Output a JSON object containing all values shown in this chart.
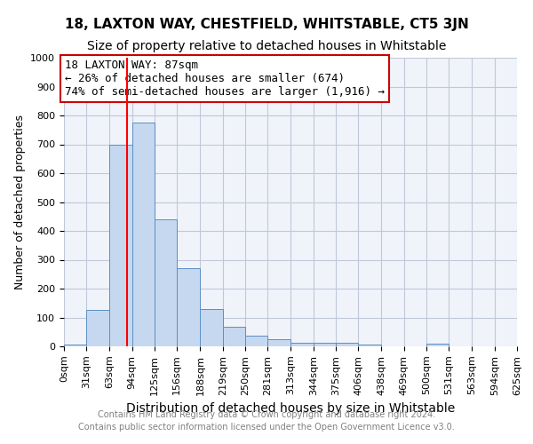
{
  "title": "18, LAXTON WAY, CHESTFIELD, WHITSTABLE, CT5 3JN",
  "subtitle": "Size of property relative to detached houses in Whitstable",
  "xlabel": "Distribution of detached houses by size in Whitstable",
  "ylabel": "Number of detached properties",
  "bin_labels": [
    "0sqm",
    "31sqm",
    "63sqm",
    "94sqm",
    "125sqm",
    "156sqm",
    "188sqm",
    "219sqm",
    "250sqm",
    "281sqm",
    "313sqm",
    "344sqm",
    "375sqm",
    "406sqm",
    "438sqm",
    "469sqm",
    "500sqm",
    "531sqm",
    "563sqm",
    "594sqm",
    "625sqm"
  ],
  "bin_edges": [
    0,
    31,
    63,
    94,
    125,
    156,
    188,
    219,
    250,
    281,
    313,
    344,
    375,
    406,
    438,
    469,
    500,
    531,
    563,
    594,
    625
  ],
  "bar_heights": [
    5,
    125,
    700,
    775,
    440,
    270,
    130,
    68,
    38,
    25,
    12,
    12,
    12,
    5,
    0,
    0,
    8,
    0,
    0,
    0,
    0
  ],
  "bar_color": "#c5d8f0",
  "bar_edge_color": "#5a8fc4",
  "grid_color": "#c0c8d8",
  "red_line_x": 87,
  "annotation_text": "18 LAXTON WAY: 87sqm\n← 26% of detached houses are smaller (674)\n74% of semi-detached houses are larger (1,916) →",
  "annotation_box_color": "#ffffff",
  "annotation_box_edge": "#cc0000",
  "ylim": [
    0,
    1000
  ],
  "yticks": [
    0,
    100,
    200,
    300,
    400,
    500,
    600,
    700,
    800,
    900,
    1000
  ],
  "footer1": "Contains HM Land Registry data © Crown copyright and database right 2024.",
  "footer2": "Contains public sector information licensed under the Open Government Licence v3.0.",
  "title_fontsize": 11,
  "subtitle_fontsize": 10,
  "xlabel_fontsize": 10,
  "ylabel_fontsize": 9,
  "tick_fontsize": 8,
  "annotation_fontsize": 9,
  "footer_fontsize": 7
}
